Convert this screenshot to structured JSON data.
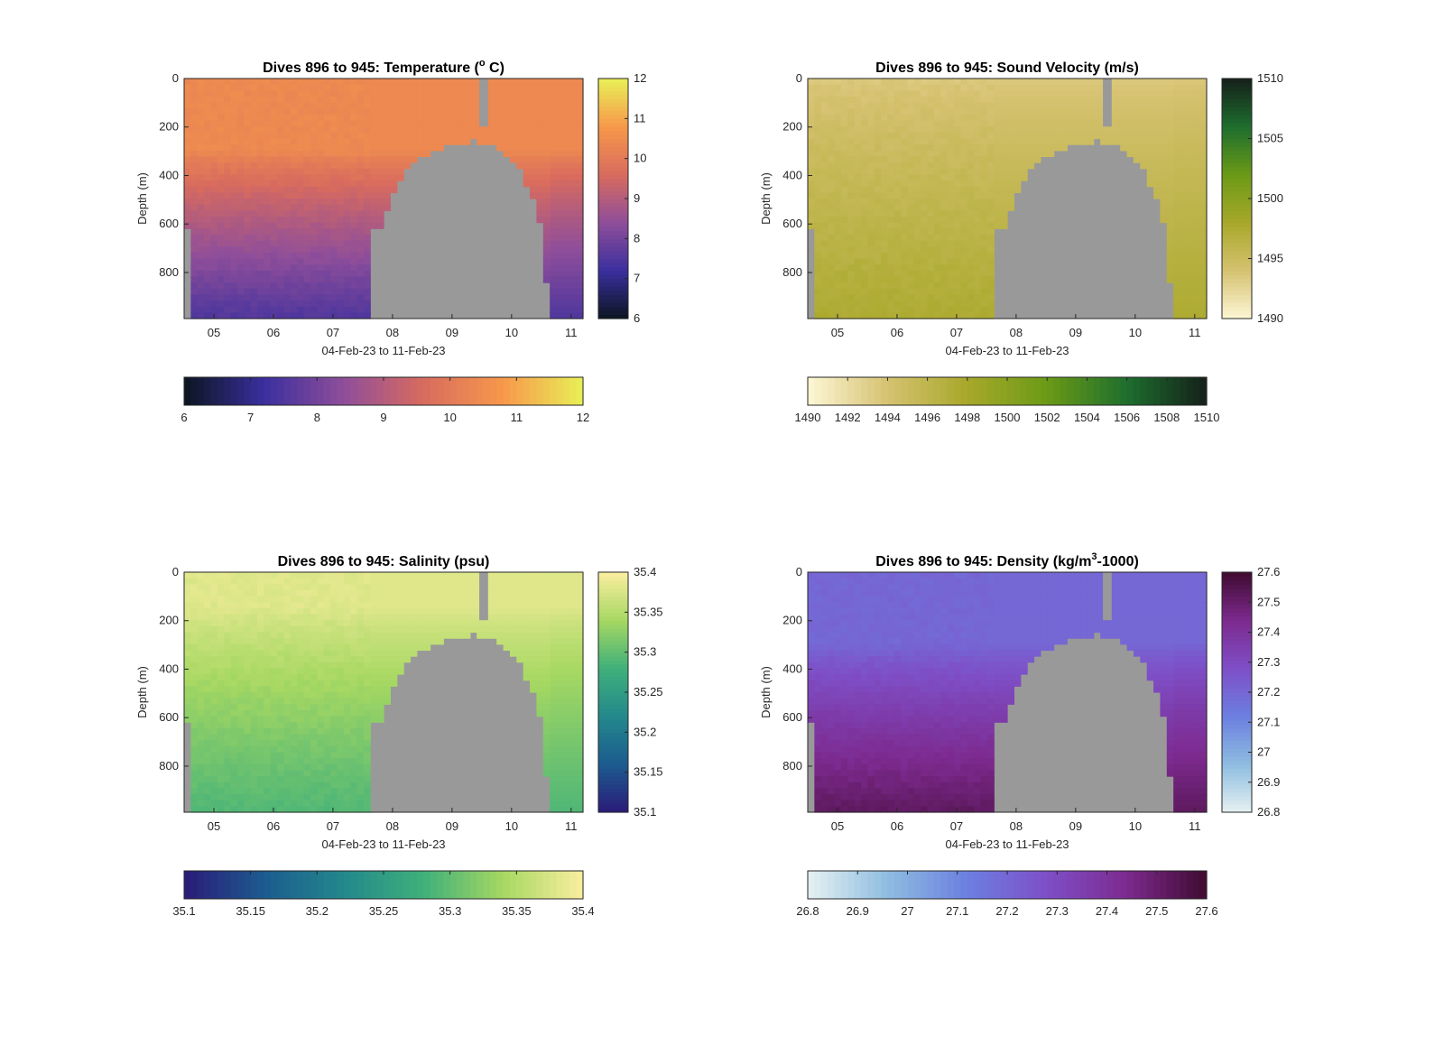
{
  "figure": {
    "background": "#ffffff",
    "panel_background": "#999999"
  },
  "chart_data": [
    {
      "type": "heatmap",
      "id": "temperature",
      "title": "Dives 896 to 945: Temperature (",
      "title_sup": "o",
      "title_end": " C)",
      "xlabel": "04-Feb-23 to 11-Feb-23",
      "ylabel": "Depth (m)",
      "x_ticks": [
        "05",
        "06",
        "07",
        "08",
        "09",
        "10",
        "11"
      ],
      "y_ticks": [
        "0",
        "200",
        "400",
        "600",
        "800"
      ],
      "y_tick_values": [
        0,
        200,
        400,
        600,
        800
      ],
      "ylim": [
        0,
        990
      ],
      "xlim_days": [
        4.5,
        11.2
      ],
      "colormap": [
        "#0b1520",
        "#3a2f9e",
        "#8f4e9a",
        "#d86b5e",
        "#f7984a",
        "#e8f057"
      ],
      "clim": [
        6,
        12
      ],
      "vertical_colorbar_ticks": [
        "6",
        "7",
        "8",
        "9",
        "10",
        "11",
        "12"
      ],
      "horizontal_colorbar_ticks": [
        "6",
        "7",
        "8",
        "9",
        "10",
        "11",
        "12"
      ],
      "surface_value": 10.4,
      "deep_value": 7.5,
      "gradient_start_depth": 300
    },
    {
      "type": "heatmap",
      "id": "sound-velocity",
      "title": "Dives 896 to 945: Sound Velocity (m/s)",
      "xlabel": "04-Feb-23 to 11-Feb-23",
      "ylabel": "Depth (m)",
      "x_ticks": [
        "05",
        "06",
        "07",
        "08",
        "09",
        "10",
        "11"
      ],
      "y_ticks": [
        "0",
        "200",
        "400",
        "600",
        "800"
      ],
      "y_tick_values": [
        0,
        200,
        400,
        600,
        800
      ],
      "ylim": [
        0,
        990
      ],
      "xlim_days": [
        4.5,
        11.2
      ],
      "colormap": [
        "#fdf7d6",
        "#d6c271",
        "#a8a82a",
        "#6b9a16",
        "#1e6e2e",
        "#15201a"
      ],
      "clim": [
        1490,
        1510
      ],
      "vertical_colorbar_ticks": [
        "1490",
        "1495",
        "1500",
        "1505",
        "1510"
      ],
      "horizontal_colorbar_ticks": [
        "1490",
        "1492",
        "1494",
        "1496",
        "1498",
        "1500",
        "1502",
        "1504",
        "1506",
        "1508",
        "1510"
      ],
      "surface_value": 1493.5,
      "deep_value": 1497.5,
      "gradient_start_depth": 0
    },
    {
      "type": "heatmap",
      "id": "salinity",
      "title": "Dives 896 to 945: Salinity (psu)",
      "xlabel": "04-Feb-23 to 11-Feb-23",
      "ylabel": "Depth (m)",
      "x_ticks": [
        "05",
        "06",
        "07",
        "08",
        "09",
        "10",
        "11"
      ],
      "y_ticks": [
        "0",
        "200",
        "400",
        "600",
        "800"
      ],
      "y_tick_values": [
        0,
        200,
        400,
        600,
        800
      ],
      "ylim": [
        0,
        990
      ],
      "xlim_days": [
        4.5,
        11.2
      ],
      "colormap": [
        "#2b1a78",
        "#1c5b8f",
        "#23888c",
        "#3fb07a",
        "#a6d862",
        "#fbeea0"
      ],
      "clim": [
        35.1,
        35.4
      ],
      "vertical_colorbar_ticks": [
        "35.1",
        "35.15",
        "35.2",
        "35.25",
        "35.3",
        "35.35",
        "35.4"
      ],
      "horizontal_colorbar_ticks": [
        "35.1",
        "35.15",
        "35.2",
        "35.25",
        "35.3",
        "35.35",
        "35.4"
      ],
      "surface_value": 35.38,
      "deep_value": 35.29,
      "gradient_start_depth": 150
    },
    {
      "type": "heatmap",
      "id": "density",
      "title": "Dives 896 to 945: Density (kg/m",
      "title_sup": "3",
      "title_end": "-1000)",
      "xlabel": "04-Feb-23 to 11-Feb-23",
      "ylabel": "Depth (m)",
      "x_ticks": [
        "05",
        "06",
        "07",
        "08",
        "09",
        "10",
        "11"
      ],
      "y_ticks": [
        "0",
        "200",
        "400",
        "600",
        "800"
      ],
      "y_tick_values": [
        0,
        200,
        400,
        600,
        800
      ],
      "ylim": [
        0,
        990
      ],
      "xlim_days": [
        4.5,
        11.2
      ],
      "colormap": [
        "#e6f1f2",
        "#8ebde0",
        "#6c7fe0",
        "#7e4fc7",
        "#7d2a8f",
        "#3f0b30"
      ],
      "clim": [
        26.8,
        27.6
      ],
      "vertical_colorbar_ticks": [
        "26.8",
        "26.9",
        "27",
        "27.1",
        "27.2",
        "27.3",
        "27.4",
        "27.5",
        "27.6"
      ],
      "horizontal_colorbar_ticks": [
        "26.8",
        "26.9",
        "27",
        "27.1",
        "27.2",
        "27.3",
        "27.4",
        "27.5",
        "27.6"
      ],
      "surface_value": 27.2,
      "deep_value": 27.52,
      "gradient_start_depth": 300
    }
  ]
}
